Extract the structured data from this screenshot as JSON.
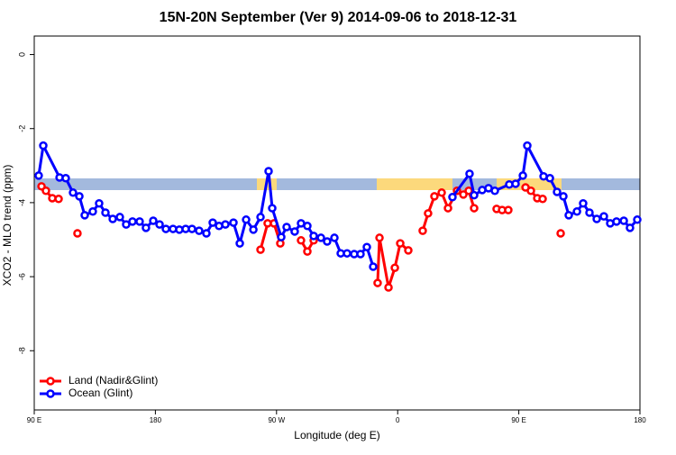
{
  "chart_data": {
    "type": "line",
    "title": "15N-20N September (Ver 9)   2014-09-06 to 2018-12-31",
    "x_label": "Longitude (deg E)",
    "y_label": "XCO2 - MLO trend (ppm)",
    "xlim": [
      90,
      540
    ],
    "xticks": [
      {
        "value": 90,
        "label": "90 E"
      },
      {
        "value": 180,
        "label": "180"
      },
      {
        "value": 270,
        "label": "90 W"
      },
      {
        "value": 360,
        "label": "0"
      },
      {
        "value": 450,
        "label": "90 E"
      },
      {
        "value": 540,
        "label": "180"
      }
    ],
    "ylim": [
      -9.6,
      0.5
    ],
    "yticks": [
      0,
      -2,
      -4,
      -6,
      -8
    ],
    "legend": "bottom-left",
    "series": [
      {
        "name": "Land (Nadir&Glint)",
        "color": "#ff0000",
        "x": [
          95.4,
          98.7,
          103.4,
          108.1,
          null,
          122.1,
          null,
          258.1,
          263.4,
          268.1,
          272.8,
          null,
          288.2,
          292.9,
          297.6,
          null,
          345.1,
          346.5,
          353.2,
          357.9,
          361.9,
          367.9,
          null,
          378.6,
          382.6,
          387.3,
          392.7,
          397.4,
          404.1,
          408.8,
          412.8,
          416.8,
          null,
          433.5,
          437.6,
          442.2,
          null,
          455,
          459,
          463.7,
          467.7,
          null,
          481.1
        ],
        "values": [
          -3.56,
          -3.68,
          -3.88,
          -3.9,
          null,
          -4.83,
          null,
          -5.27,
          -4.56,
          -4.56,
          -5.1,
          null,
          -5.02,
          -5.32,
          -5.02,
          null,
          -6.17,
          -4.95,
          -6.29,
          -5.76,
          -5.1,
          -5.29,
          null,
          -4.76,
          -4.29,
          -3.83,
          -3.73,
          -4.15,
          -3.68,
          -3.78,
          -3.68,
          -4.15,
          null,
          -4.17,
          -4.2,
          -4.2,
          null,
          -3.59,
          -3.68,
          -3.88,
          -3.9,
          null,
          -4.83
        ]
      },
      {
        "name": "Ocean (Glint)",
        "color": "#0000ff",
        "x": [
          93.3,
          96.7,
          108.8,
          113.4,
          118.8,
          123.5,
          127.5,
          133.5,
          138.2,
          142.9,
          148.3,
          153.6,
          158.3,
          163,
          168.3,
          173,
          178.4,
          183.1,
          187.8,
          193.1,
          197.8,
          202.5,
          207.2,
          212.5,
          217.9,
          222.6,
          227.3,
          232,
          238,
          242.7,
          247.4,
          252.8,
          258.1,
          264.1,
          266.8,
          273.5,
          277.5,
          283.5,
          288.2,
          292.9,
          297.6,
          303,
          307.6,
          313,
          317.7,
          322.4,
          327.7,
          332.4,
          337.1,
          341.8,
          null,
          400.7,
          413.4,
          416.8,
          422.8,
          427.5,
          432.2,
          442.9,
          447.6,
          453,
          456.3,
          468.4,
          473.1,
          478.4,
          483.1,
          487.1,
          493.2,
          497.8,
          502.5,
          507.9,
          513.2,
          517.9,
          522.6,
          528,
          532.6,
          538
        ],
        "values": [
          -3.27,
          -2.46,
          -3.32,
          -3.34,
          -3.73,
          -3.83,
          -4.34,
          -4.24,
          -4.02,
          -4.27,
          -4.44,
          -4.39,
          -4.59,
          -4.51,
          -4.51,
          -4.68,
          -4.49,
          -4.59,
          -4.71,
          -4.71,
          -4.73,
          -4.71,
          -4.71,
          -4.76,
          -4.83,
          -4.54,
          -4.63,
          -4.59,
          -4.54,
          -5.1,
          -4.46,
          -4.73,
          -4.39,
          -3.15,
          -4.15,
          -4.93,
          -4.66,
          -4.78,
          -4.56,
          -4.63,
          -4.9,
          -4.95,
          -5.05,
          -4.95,
          -5.37,
          -5.37,
          -5.39,
          -5.39,
          -5.2,
          -5.73,
          null,
          -3.85,
          -3.22,
          -3.8,
          -3.66,
          -3.61,
          -3.68,
          -3.51,
          -3.49,
          -3.27,
          -2.46,
          -3.29,
          -3.34,
          -3.71,
          -3.83,
          -4.34,
          -4.24,
          -4.02,
          -4.27,
          -4.44,
          -4.37,
          -4.56,
          -4.51,
          -4.49,
          -4.68,
          -4.46
        ]
      }
    ]
  }
}
